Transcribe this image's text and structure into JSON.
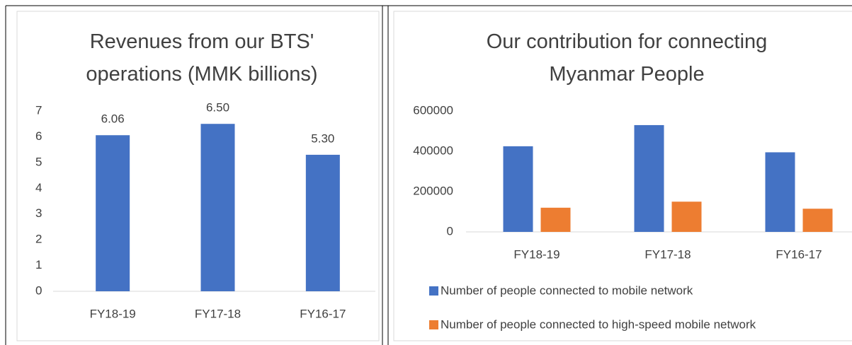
{
  "chart_data": [
    {
      "type": "bar",
      "title": "Revenues from our BTS' operations (MMK billions)",
      "categories": [
        "FY18-19",
        "FY17-18",
        "FY16-17"
      ],
      "values": [
        6.06,
        6.5,
        5.3
      ],
      "value_labels": [
        "6.06",
        "6.50",
        "5.30"
      ],
      "color": "#4472c4",
      "ylim": [
        0,
        7
      ],
      "yticks": [
        0,
        1,
        2,
        3,
        4,
        5,
        6,
        7
      ],
      "grid": false
    },
    {
      "type": "grouped_bar",
      "title": "Our contribution for connecting Myanmar People",
      "categories": [
        "FY18-19",
        "FY17-18",
        "FY16-17"
      ],
      "series": [
        {
          "name": "Number of people connected to mobile network",
          "color": "#4472c4",
          "values": [
            425000,
            530000,
            395000
          ]
        },
        {
          "name": "Number of people connected to high-speed mobile network",
          "color": "#ed7d31",
          "values": [
            120000,
            150000,
            115000
          ]
        }
      ],
      "ylim": [
        0,
        600000
      ],
      "yticks": [
        0,
        200000,
        400000,
        600000
      ],
      "grid": false,
      "legend": "bottom"
    }
  ]
}
